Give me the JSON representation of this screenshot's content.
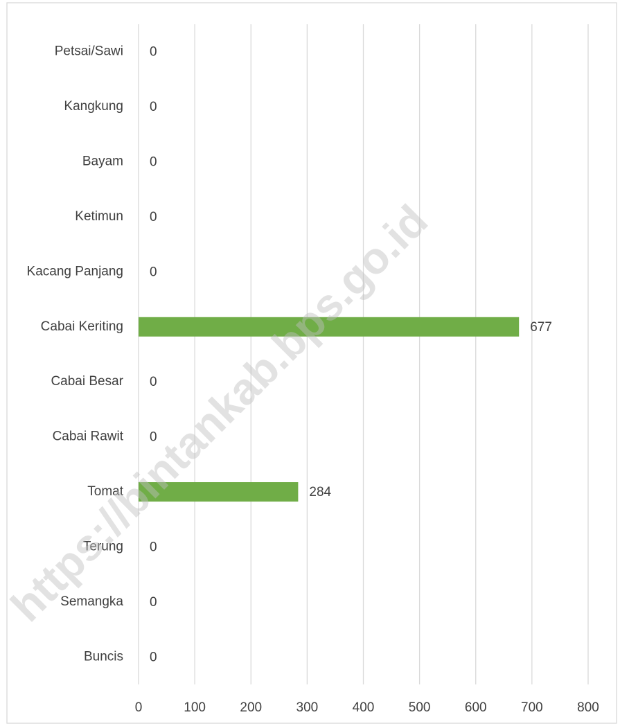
{
  "chart_data": {
    "type": "bar",
    "orientation": "horizontal",
    "categories": [
      "Petsai/Sawi",
      "Kangkung",
      "Bayam",
      "Ketimun",
      "Kacang Panjang",
      "Cabai Keriting",
      "Cabai Besar",
      "Cabai Rawit",
      "Tomat",
      "Terung",
      "Semangka",
      "Buncis"
    ],
    "values": [
      0,
      0,
      0,
      0,
      0,
      677,
      0,
      0,
      284,
      0,
      0,
      0
    ],
    "color": "#70ad47",
    "xlim": [
      0,
      800
    ],
    "xticks": [
      0,
      100,
      200,
      300,
      400,
      500,
      600,
      700,
      800
    ],
    "grid": true,
    "watermark": "https://bintankab.bps.go.id"
  }
}
